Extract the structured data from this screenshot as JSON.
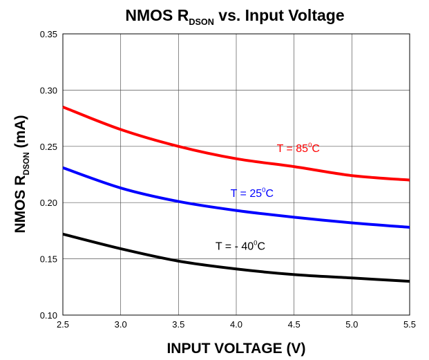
{
  "chart_data": {
    "type": "line",
    "title": {
      "main": "NMOS R",
      "sub": "DSON",
      "rest": " vs. Input Voltage"
    },
    "xlabel": "INPUT VOLTAGE (V)",
    "ylabel": {
      "main": "NMOS R",
      "sub": "DSON",
      "rest": " (mA)"
    },
    "xlim": [
      2.5,
      5.5
    ],
    "ylim": [
      0.1,
      0.35
    ],
    "x_ticks": [
      "2.5",
      "3.0",
      "3.5",
      "4.0",
      "4.5",
      "5.0",
      "5.5"
    ],
    "y_ticks": [
      "0.10",
      "0.15",
      "0.20",
      "0.25",
      "0.30",
      "0.35"
    ],
    "grid": true,
    "legend": "none",
    "x": [
      2.5,
      3.0,
      3.5,
      4.0,
      4.5,
      5.0,
      5.5
    ],
    "series": [
      {
        "label": {
          "main": "T = 85",
          "sup": "0",
          "rest": "C"
        },
        "color": "#ff0000",
        "values": [
          0.285,
          0.265,
          0.25,
          0.239,
          0.232,
          0.224,
          0.22
        ],
        "label_at": [
          4.35,
          0.245
        ]
      },
      {
        "label": {
          "main": "T = 25",
          "sup": "0",
          "rest": "C"
        },
        "color": "#0000ff",
        "values": [
          0.231,
          0.213,
          0.201,
          0.193,
          0.187,
          0.182,
          0.178
        ],
        "label_at": [
          3.95,
          0.205
        ]
      },
      {
        "label": {
          "main": "T = - 40",
          "sup": "0",
          "rest": "C"
        },
        "color": "#000000",
        "values": [
          0.172,
          0.159,
          0.148,
          0.141,
          0.136,
          0.133,
          0.13
        ],
        "label_at": [
          3.82,
          0.158
        ]
      }
    ]
  }
}
